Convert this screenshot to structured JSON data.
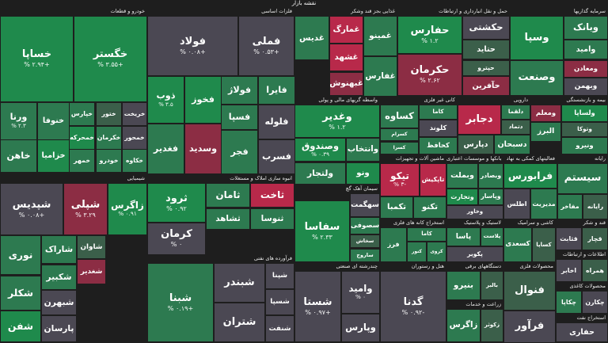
{
  "title": "نقشه بازار",
  "colors": {
    "bg": "#1e1e1e",
    "g3": "#1f8a4c",
    "g2": "#2d7a50",
    "g1": "#3b5f4a",
    "n": "#4b4853",
    "r1": "#6a3b48",
    "r2": "#8c2d44",
    "r3": "#b8294a"
  },
  "sectors": [
    {
      "label": "خودرو و قطعات",
      "s": "d",
      "tiles": [
        {
          "name": "خساپا",
          "pct": "% ۲.۹۴+",
          "c": "g3"
        },
        {
          "name": "خگستر",
          "pct": "% ۳.۵۵+",
          "c": "g3"
        },
        {
          "name": "ورنا",
          "pct": "% ۲.۳",
          "c": "g2"
        },
        {
          "name": "خنوفا",
          "pct": "",
          "c": "g2"
        },
        {
          "name": "خپارس",
          "pct": "",
          "c": "g2"
        },
        {
          "name": "خاهن",
          "pct": "",
          "c": "g2"
        },
        {
          "name": "خزامیا",
          "pct": "",
          "c": "g3"
        },
        {
          "name": "خمحرکه",
          "pct": "",
          "c": "g3"
        },
        {
          "name": "ختور",
          "pct": "",
          "c": "g1"
        },
        {
          "name": "خمهر",
          "pct": "",
          "c": "g2"
        },
        {
          "name": "خکرمان",
          "pct": "",
          "c": "g2"
        },
        {
          "name": "خودرو",
          "pct": "",
          "c": "g2"
        },
        {
          "name": "خریخت",
          "pct": "",
          "c": "n"
        },
        {
          "name": "خمحور",
          "pct": "",
          "c": "n"
        },
        {
          "name": "خکاوه",
          "pct": "",
          "c": "g2"
        }
      ]
    },
    {
      "label": "فلزات اساسی",
      "s": "d",
      "tiles": [
        {
          "name": "فولاد",
          "pct": "% ۰.۰۸+",
          "c": "n"
        },
        {
          "name": "فملی",
          "pct": "% ۰.۵۳+",
          "c": "n"
        },
        {
          "name": "ذوب",
          "pct": "% ۳.۵",
          "c": "g3"
        },
        {
          "name": "فخوز",
          "pct": "",
          "c": "g3"
        },
        {
          "name": "فولاژ",
          "pct": "",
          "c": "g2"
        },
        {
          "name": "فایرا",
          "pct": "",
          "c": "g2"
        },
        {
          "name": "فسپا",
          "pct": "",
          "c": "g2"
        },
        {
          "name": "فغدیر",
          "pct": "",
          "c": "g2"
        },
        {
          "name": "وسدید",
          "pct": "",
          "c": "r2"
        },
        {
          "name": "فجر",
          "pct": "",
          "c": "g2"
        },
        {
          "name": "فلوله",
          "pct": "",
          "c": "n"
        },
        {
          "name": "فسرب",
          "pct": "",
          "c": "n"
        }
      ]
    },
    {
      "label": "غذایی بجز قند وشکر",
      "s": "d",
      "tiles": [
        {
          "name": "غدیس",
          "pct": "",
          "c": "g2"
        },
        {
          "name": "غمارگ",
          "pct": "",
          "c": "r3"
        },
        {
          "name": "غشهد",
          "pct": "",
          "c": "r3"
        },
        {
          "name": "غبهنوش",
          "pct": "",
          "c": "r2"
        },
        {
          "name": "غمینو",
          "pct": "",
          "c": "g2"
        },
        {
          "name": "غفارس",
          "pct": "",
          "c": "g2"
        }
      ]
    },
    {
      "label": "حمل و نقل انبارداری و ارتباطات",
      "s": "d",
      "tiles": [
        {
          "name": "حفارس",
          "pct": "% ۱.۲",
          "c": "g3"
        },
        {
          "name": "حکشتی",
          "pct": "",
          "c": "n"
        },
        {
          "name": "حکرمان",
          "pct": "% ۲.۶۲",
          "c": "r2"
        },
        {
          "name": "حتاید",
          "pct": "",
          "c": "g1"
        },
        {
          "name": "حپترو",
          "pct": "",
          "c": "g1"
        },
        {
          "name": "حآفرین",
          "pct": "",
          "c": "r2"
        }
      ]
    },
    {
      "label": "سرمایه گذاریها",
      "s": "d",
      "tiles": [
        {
          "name": "وسپا",
          "pct": "",
          "c": "g3"
        },
        {
          "name": "وبانک",
          "pct": "",
          "c": "g2"
        },
        {
          "name": "وامید",
          "pct": "",
          "c": "g2"
        },
        {
          "name": "وصنعت",
          "pct": "",
          "c": "g2"
        },
        {
          "name": "ومعادن",
          "pct": "",
          "c": "r2"
        },
        {
          "name": "وبهمن",
          "pct": "",
          "c": "n"
        }
      ]
    },
    {
      "label": "شیمیایی",
      "s": "d",
      "tiles": [
        {
          "name": "شپدیس",
          "pct": "% ۰.۰۸+",
          "c": "n"
        },
        {
          "name": "شپلی",
          "pct": "% ۳.۲۹",
          "c": "r2"
        },
        {
          "name": "زاگرس",
          "pct": "% ۰.۹۱",
          "c": "g3"
        },
        {
          "name": "نوری",
          "pct": "",
          "c": "g2"
        },
        {
          "name": "شکلر",
          "pct": "",
          "c": "g2"
        },
        {
          "name": "شفن",
          "pct": "",
          "c": "g3"
        },
        {
          "name": "شاراک",
          "pct": "",
          "c": "g2"
        },
        {
          "name": "شغدیر",
          "pct": "",
          "c": "r2"
        },
        {
          "name": "شکبیر",
          "pct": "",
          "c": "g2"
        },
        {
          "name": "شبهرن",
          "pct": "",
          "c": "n"
        },
        {
          "name": "پارسان",
          "pct": "",
          "c": "n"
        },
        {
          "name": "شاوان",
          "pct": "",
          "c": "g1"
        }
      ]
    },
    {
      "label": "انبوه سازی املاک و مستغلات",
      "s": "d",
      "tiles": [
        {
          "name": "ثرود",
          "pct": "% ۰.۹۲",
          "c": "g3"
        },
        {
          "name": "کرمان",
          "pct": "% ۰",
          "c": "n"
        },
        {
          "name": "ثامان",
          "pct": "",
          "c": "g2"
        },
        {
          "name": "ثشاهد",
          "pct": "",
          "c": "g2"
        },
        {
          "name": "ثاخت",
          "pct": "",
          "c": "r3"
        },
        {
          "name": "ثنوسا",
          "pct": "",
          "c": "g2"
        }
      ]
    },
    {
      "label": "فرآورده های نفتی",
      "s": "d",
      "tiles": [
        {
          "name": "شبنا",
          "pct": "% ۰.۱۹+",
          "c": "g2"
        },
        {
          "name": "شبندر",
          "pct": "",
          "c": "n"
        },
        {
          "name": "شتران",
          "pct": "",
          "c": "n"
        },
        {
          "name": "شپنا",
          "pct": "",
          "c": "n"
        },
        {
          "name": "شسپا",
          "pct": "",
          "c": "n"
        },
        {
          "name": "شنفت",
          "pct": "",
          "c": "n"
        }
      ]
    },
    {
      "label": "واسطه گریهای مالی و پولی",
      "s": "d",
      "tiles": [
        {
          "name": "وغدیر",
          "pct": "% ۱.۲",
          "c": "g3"
        },
        {
          "name": "وصندوق",
          "pct": "% ۰.۳۹",
          "c": "g3"
        },
        {
          "name": "ولتجار",
          "pct": "",
          "c": "g2"
        },
        {
          "name": "وانتخاب",
          "pct": "",
          "c": "g2"
        },
        {
          "name": "ونو",
          "pct": "",
          "c": "g3"
        }
      ]
    },
    {
      "label": "کانی غیر فلزی",
      "s": "d",
      "tiles": [
        {
          "name": "کساوه",
          "pct": "",
          "c": "g2"
        },
        {
          "name": "کاما",
          "pct": "",
          "c": "g2"
        },
        {
          "name": "کسرام",
          "pct": "",
          "c": "g2"
        },
        {
          "name": "کلوند",
          "pct": "",
          "c": "n"
        },
        {
          "name": "کسرا",
          "pct": "",
          "c": "g2"
        },
        {
          "name": "کحافظ",
          "pct": "",
          "c": "g2"
        },
        {
          "name": "کهمدا",
          "pct": "",
          "c": "g2"
        },
        {
          "name": "کرمان",
          "pct": "",
          "c": "g1"
        }
      ]
    },
    {
      "label": "دارویی",
      "s": "d",
      "tiles": [
        {
          "name": "دجابر",
          "pct": "",
          "c": "r3"
        },
        {
          "name": "دلقما",
          "pct": "",
          "c": "g2"
        },
        {
          "name": "دتماد",
          "pct": "",
          "c": "g1"
        },
        {
          "name": "دپارس",
          "pct": "",
          "c": "g1"
        },
        {
          "name": "دسبحان",
          "pct": "",
          "c": "g2"
        },
        {
          "name": "دتولید",
          "pct": "",
          "c": "g2"
        }
      ]
    },
    {
      "label": "بیمه و بازنشستگی",
      "s": "d",
      "tiles": [
        {
          "name": "ومعلم",
          "pct": "",
          "c": "r2"
        },
        {
          "name": "ولساپا",
          "pct": "",
          "c": "g3"
        },
        {
          "name": "البرز",
          "pct": "",
          "c": "g2"
        },
        {
          "name": "وتوکا",
          "pct": "",
          "c": "g1"
        },
        {
          "name": "ونیرو",
          "pct": "",
          "c": "g2"
        }
      ]
    },
    {
      "label": "ماشین آلات و تجهیزات",
      "s": "d",
      "tiles": [
        {
          "name": "تیکو",
          "pct": "% ۳-",
          "c": "r3"
        },
        {
          "name": "تاپکیش",
          "pct": "",
          "c": "r3"
        },
        {
          "name": "تکمبا",
          "pct": "",
          "c": "g2"
        },
        {
          "name": "تکنو",
          "pct": "",
          "c": "g2"
        },
        {
          "name": "کخاک",
          "pct": "",
          "c": "g2"
        },
        {
          "name": "تپکو",
          "pct": "",
          "c": "n"
        }
      ]
    },
    {
      "label": "بانکها و موسسات اعتباری",
      "s": "d",
      "tiles": [
        {
          "name": "وبملت",
          "pct": "",
          "c": "g2"
        },
        {
          "name": "وبصادر",
          "pct": "",
          "c": "g2"
        },
        {
          "name": "وتجارت",
          "pct": "",
          "c": "g3"
        },
        {
          "name": "وپاسار",
          "pct": "",
          "c": "g2"
        },
        {
          "name": "وخاور",
          "pct": "",
          "c": "n"
        }
      ]
    },
    {
      "label": "فعالیتهای کمکی به نهاد",
      "s": "d",
      "tiles": [
        {
          "name": "فرابورس",
          "pct": "",
          "c": "g3"
        },
        {
          "name": "اطلس",
          "pct": "",
          "c": "n"
        },
        {
          "name": "مدیریت",
          "pct": "",
          "c": "g2"
        }
      ]
    },
    {
      "label": "رایانه",
      "s": "d",
      "tiles": [
        {
          "name": "سیستم",
          "pct": "",
          "c": "g2"
        },
        {
          "name": "مفاخر",
          "pct": "",
          "c": "g2"
        },
        {
          "name": "رایانه",
          "pct": "",
          "c": "g1"
        }
      ]
    },
    {
      "label": "سیمان آهک گچ",
      "s": "d",
      "tiles": [
        {
          "name": "سفاسا",
          "pct": "% ۲.۳۳",
          "c": "g3"
        },
        {
          "name": "سهگمت",
          "pct": "",
          "c": "n"
        },
        {
          "name": "سصوفی",
          "pct": "",
          "c": "g2"
        },
        {
          "name": "سخاش",
          "pct": "",
          "c": "g1"
        },
        {
          "name": "ساروج",
          "pct": "",
          "c": "g2"
        }
      ]
    },
    {
      "label": "استخراج کانه های فلزی",
      "s": "d",
      "tiles": [
        {
          "name": "فرز",
          "pct": "",
          "c": "g2"
        },
        {
          "name": "کاما",
          "pct": "",
          "c": "g2"
        },
        {
          "name": "کنور",
          "pct": "",
          "c": "g2"
        },
        {
          "name": "کروی",
          "pct": "",
          "c": "g2"
        }
      ]
    },
    {
      "label": "لاستیک و پلاستیک",
      "s": "d",
      "tiles": [
        {
          "name": "پاسا",
          "pct": "",
          "c": "g2"
        },
        {
          "name": "پلاست",
          "pct": "",
          "c": "g2"
        },
        {
          "name": "پکویر",
          "pct": "",
          "c": "n"
        }
      ]
    },
    {
      "label": "کاشی و سرامیک",
      "s": "d",
      "tiles": [
        {
          "name": "کسعدی",
          "pct": "",
          "c": "g2"
        },
        {
          "name": "کساپا",
          "pct": "",
          "c": "g1"
        }
      ]
    },
    {
      "label": "چندرشته ای صنعتی",
      "s": "d",
      "tiles": [
        {
          "name": "شستا",
          "pct": "% ۰.۹۷+",
          "c": "n"
        },
        {
          "name": "وامید",
          "pct": "% ۰",
          "c": "n"
        },
        {
          "name": "وپارس",
          "pct": "",
          "c": "n"
        }
      ]
    },
    {
      "label": "هتل و رستوران",
      "s": "d",
      "tiles": [
        {
          "name": "گدنا",
          "pct": "% ۰.۹۲-",
          "c": "n"
        }
      ]
    },
    {
      "label": "دستگاههای برقی",
      "s": "d",
      "tiles": [
        {
          "name": "بنیرو",
          "pct": "",
          "c": "g2"
        },
        {
          "name": "بالبر",
          "pct": "",
          "c": "g1"
        }
      ]
    },
    {
      "label": "زراعت و خدمات",
      "s": "d",
      "tiles": [
        {
          "name": "زاگرس",
          "pct": "",
          "c": "g2"
        },
        {
          "name": "زکوثر",
          "pct": "",
          "c": "g1"
        }
      ]
    },
    {
      "label": "محصولات فلزی",
      "s": "d",
      "tiles": [
        {
          "name": "فنوال",
          "pct": "",
          "c": "g1"
        },
        {
          "name": "فرآور",
          "pct": "",
          "c": "n"
        }
      ]
    },
    {
      "label": "قند و شکر",
      "s": "d",
      "tiles": [
        {
          "name": "قثابت",
          "pct": "",
          "c": "n"
        },
        {
          "name": "قچار",
          "pct": "",
          "c": "g1"
        }
      ]
    },
    {
      "label": "اطلاعات و ارتباطات",
      "s": "d",
      "tiles": [
        {
          "name": "اخابر",
          "pct": "",
          "c": "n"
        },
        {
          "name": "همراه",
          "pct": "",
          "c": "g1"
        }
      ]
    },
    {
      "label": "محصولات کاغذی",
      "s": "d",
      "tiles": [
        {
          "name": "چکاپا",
          "pct": "",
          "c": "g2"
        },
        {
          "name": "چکارن",
          "pct": "",
          "c": "n"
        }
      ]
    },
    {
      "label": "استخراج نفت",
      "s": "d",
      "tiles": [
        {
          "name": "حفاری",
          "pct": "",
          "c": "n"
        }
      ]
    }
  ]
}
